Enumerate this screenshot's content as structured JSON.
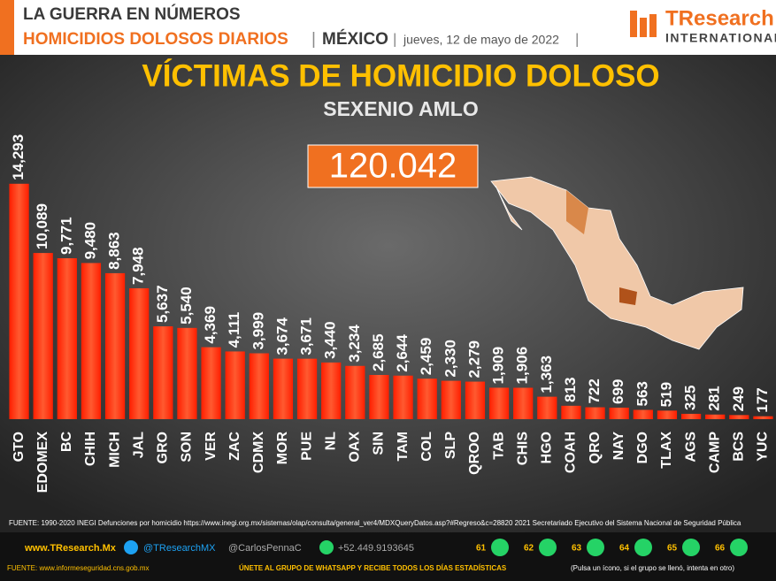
{
  "header": {
    "line1": "LA GUERRA EN NÚMEROS",
    "line2": "HOMICIDIOS DOLOSOS DIARIOS",
    "country": "MÉXICO",
    "date": "jueves, 12 de mayo de 2022",
    "logo_name": "TResearch",
    "logo_sub": "INTERNATIONAL"
  },
  "chart_data": {
    "type": "bar",
    "title": "VÍCTIMAS DE HOMICIDIO DOLOSO",
    "subtitle": "SEXENIO AMLO",
    "total_label": "120.042",
    "categories": [
      "GTO",
      "EDOMEX",
      "BC",
      "CHIH",
      "MICH",
      "JAL",
      "GRO",
      "SON",
      "VER",
      "ZAC",
      "CDMX",
      "MOR",
      "PUE",
      "NL",
      "OAX",
      "SIN",
      "TAM",
      "COL",
      "SLP",
      "QROO",
      "TAB",
      "CHIS",
      "HGO",
      "COAH",
      "QRO",
      "NAY",
      "DGO",
      "TLAX",
      "AGS",
      "CAMP",
      "BCS",
      "YUC"
    ],
    "values": [
      14293,
      10089,
      9771,
      9480,
      8863,
      7948,
      5637,
      5540,
      4369,
      4111,
      3999,
      3674,
      3671,
      3440,
      3234,
      2685,
      2644,
      2459,
      2330,
      2279,
      1909,
      1906,
      1363,
      813,
      722,
      699,
      563,
      519,
      325,
      281,
      249,
      177
    ],
    "value_labels": [
      "14,293",
      "10,089",
      "9,771",
      "9,480",
      "8,863",
      "7,948",
      "5,637",
      "5,540",
      "4,369",
      "4,111",
      "3,999",
      "3,674",
      "3,671",
      "3,440",
      "3,234",
      "2,685",
      "2,644",
      "2,459",
      "2,330",
      "2,279",
      "1,909",
      "1,906",
      "1,363",
      "813",
      "722",
      "699",
      "563",
      "519",
      "325",
      "281",
      "249",
      "177"
    ],
    "color": "#ff3010",
    "ylim": [
      0,
      16000
    ]
  },
  "footer": {
    "source": "FUENTE: 1990-2020 INEGI Defunciones por homicidio https://www.inegi.org.mx/sistemas/olap/consulta/general_ver4/MDXQueryDatos.asp?#Regreso&c=28820  2021 Secretariado Ejecutivo del Sistema Nacional de Seguridad Pública",
    "web": "www.TResearch.Mx",
    "twitter": "@TResearchMX",
    "twitter2": "@CarlosPennaC",
    "phone": "+52.449.9193645",
    "groups": [
      "61",
      "62",
      "63",
      "64",
      "65",
      "66"
    ],
    "fuente2": "FUENTE: www.informeseguridad.cns.gob.mx",
    "join": "ÚNETE AL GRUPO DE WHATSAPP Y RECIBE TODOS LOS DÍAS ESTADÍSTICAS",
    "join_note": "(Pulsa un ícono, si el grupo se llenó, intenta en otro)"
  }
}
